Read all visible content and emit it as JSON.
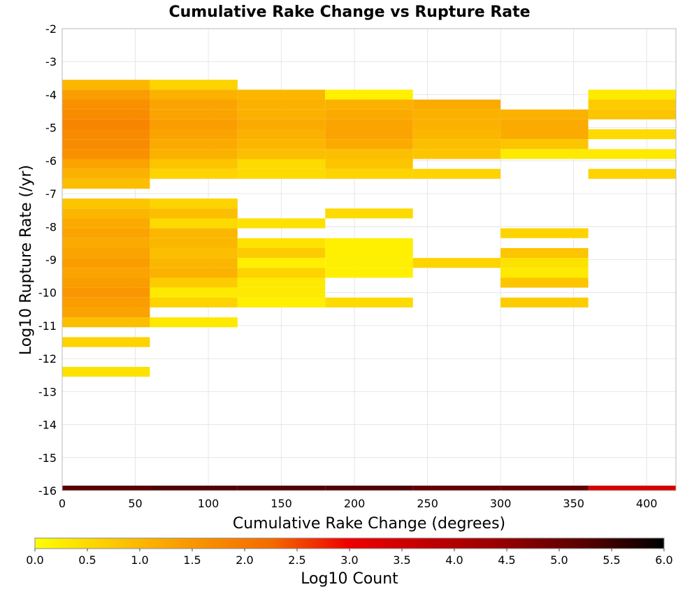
{
  "chart_data": {
    "type": "heatmap",
    "title": "Cumulative Rake Change vs Rupture Rate",
    "xlabel": "Cumulative Rake Change (degrees)",
    "ylabel": "Log10 Rupture Rate (/yr)",
    "xlim": [
      0,
      420
    ],
    "ylim": [
      -16,
      -2
    ],
    "x_ticks": [
      "0",
      "50",
      "100",
      "150",
      "200",
      "250",
      "300",
      "350",
      "400"
    ],
    "y_ticks": [
      "-2",
      "-3",
      "-4",
      "-5",
      "-6",
      "-7",
      "-8",
      "-9",
      "-10",
      "-11",
      "-12",
      "-13",
      "-14",
      "-15",
      "-16"
    ],
    "x_bin_width": 60,
    "y_bin_height": 0.3,
    "grid": true,
    "colorbar": {
      "label": "Log10 Count",
      "range": [
        0,
        6
      ],
      "ticks": [
        "0.0",
        "0.5",
        "1.0",
        "1.5",
        "2.0",
        "2.5",
        "3.0",
        "3.5",
        "4.0",
        "4.5",
        "5.0",
        "5.5",
        "6.0"
      ],
      "colors": [
        "#ffff00",
        "#fcc800",
        "#fa9600",
        "#f46b00",
        "#ee0000",
        "#c00000",
        "#920000",
        "#560000",
        "#000000"
      ]
    },
    "cells_by_x_bin": [
      {
        "x": 0,
        "y_values": [
          -3.7,
          -4.0,
          -4.3,
          -4.6,
          -4.9,
          -5.2,
          -5.5,
          -5.8,
          -6.1,
          -6.4,
          -6.7,
          -7.3,
          -7.6,
          -7.9,
          -8.2,
          -8.5,
          -8.8,
          -9.1,
          -9.4,
          -9.7,
          -10.0,
          -10.3,
          -10.6,
          -10.9,
          -11.5,
          -12.4,
          -16.0
        ],
        "log10_counts": [
          1.0,
          1.4,
          1.6,
          1.7,
          1.8,
          1.7,
          1.7,
          1.6,
          1.3,
          1.1,
          0.9,
          0.8,
          1.0,
          1.2,
          1.3,
          1.2,
          1.3,
          1.4,
          1.3,
          1.4,
          1.5,
          1.4,
          1.3,
          0.9,
          0.6,
          0.4,
          5.2
        ]
      },
      {
        "x": 60,
        "y_values": [
          -3.7,
          -4.0,
          -4.3,
          -4.6,
          -4.9,
          -5.2,
          -5.5,
          -5.8,
          -6.1,
          -6.4,
          -7.3,
          -7.6,
          -7.9,
          -8.2,
          -8.5,
          -8.8,
          -9.1,
          -9.4,
          -9.7,
          -10.0,
          -10.3,
          -10.9,
          -16.0
        ],
        "log10_counts": [
          0.6,
          1.1,
          1.3,
          1.3,
          1.4,
          1.3,
          1.2,
          1.1,
          0.8,
          0.6,
          0.6,
          0.9,
          0.5,
          1.0,
          1.0,
          0.9,
          1.0,
          1.1,
          0.7,
          0.3,
          0.6,
          0.3,
          5.3
        ]
      },
      {
        "x": 120,
        "y_values": [
          -4.0,
          -4.3,
          -4.6,
          -4.9,
          -5.2,
          -5.5,
          -5.8,
          -6.1,
          -6.4,
          -7.9,
          -8.5,
          -8.8,
          -9.1,
          -9.4,
          -9.7,
          -10.0,
          -10.3,
          -16.0
        ],
        "log10_counts": [
          1.0,
          1.1,
          1.1,
          1.2,
          1.1,
          1.0,
          0.9,
          0.5,
          0.5,
          0.4,
          0.4,
          0.7,
          0.2,
          0.6,
          0.3,
          0.3,
          0.2,
          5.3
        ]
      },
      {
        "x": 180,
        "y_values": [
          -4.0,
          -4.3,
          -4.6,
          -4.9,
          -5.2,
          -5.5,
          -5.8,
          -6.1,
          -6.4,
          -7.6,
          -8.5,
          -8.8,
          -9.1,
          -9.4,
          -10.3,
          -16.0
        ],
        "log10_counts": [
          0.2,
          1.1,
          1.2,
          1.3,
          1.3,
          1.2,
          0.9,
          0.8,
          0.6,
          0.5,
          0.2,
          0.2,
          0.2,
          0.2,
          0.5,
          5.3
        ]
      },
      {
        "x": 240,
        "y_values": [
          -4.3,
          -4.6,
          -4.9,
          -5.2,
          -5.5,
          -5.8,
          -6.4,
          -9.1,
          -16.0
        ],
        "log10_counts": [
          1.2,
          1.1,
          1.1,
          1.0,
          0.9,
          0.8,
          0.6,
          0.6,
          5.1
        ]
      },
      {
        "x": 300,
        "y_values": [
          -4.6,
          -4.9,
          -5.2,
          -5.5,
          -5.8,
          -8.2,
          -8.8,
          -9.1,
          -9.4,
          -9.7,
          -10.3,
          -16.0
        ],
        "log10_counts": [
          1.1,
          1.2,
          1.2,
          0.8,
          0.3,
          0.6,
          0.8,
          0.4,
          0.3,
          0.8,
          0.7,
          5.1
        ]
      },
      {
        "x": 360,
        "y_values": [
          -4.0,
          -4.3,
          -4.6,
          -5.2,
          -5.8,
          -6.4,
          -16.0
        ],
        "log10_counts": [
          0.3,
          0.7,
          0.8,
          0.5,
          0.3,
          0.6,
          3.4
        ]
      }
    ]
  }
}
